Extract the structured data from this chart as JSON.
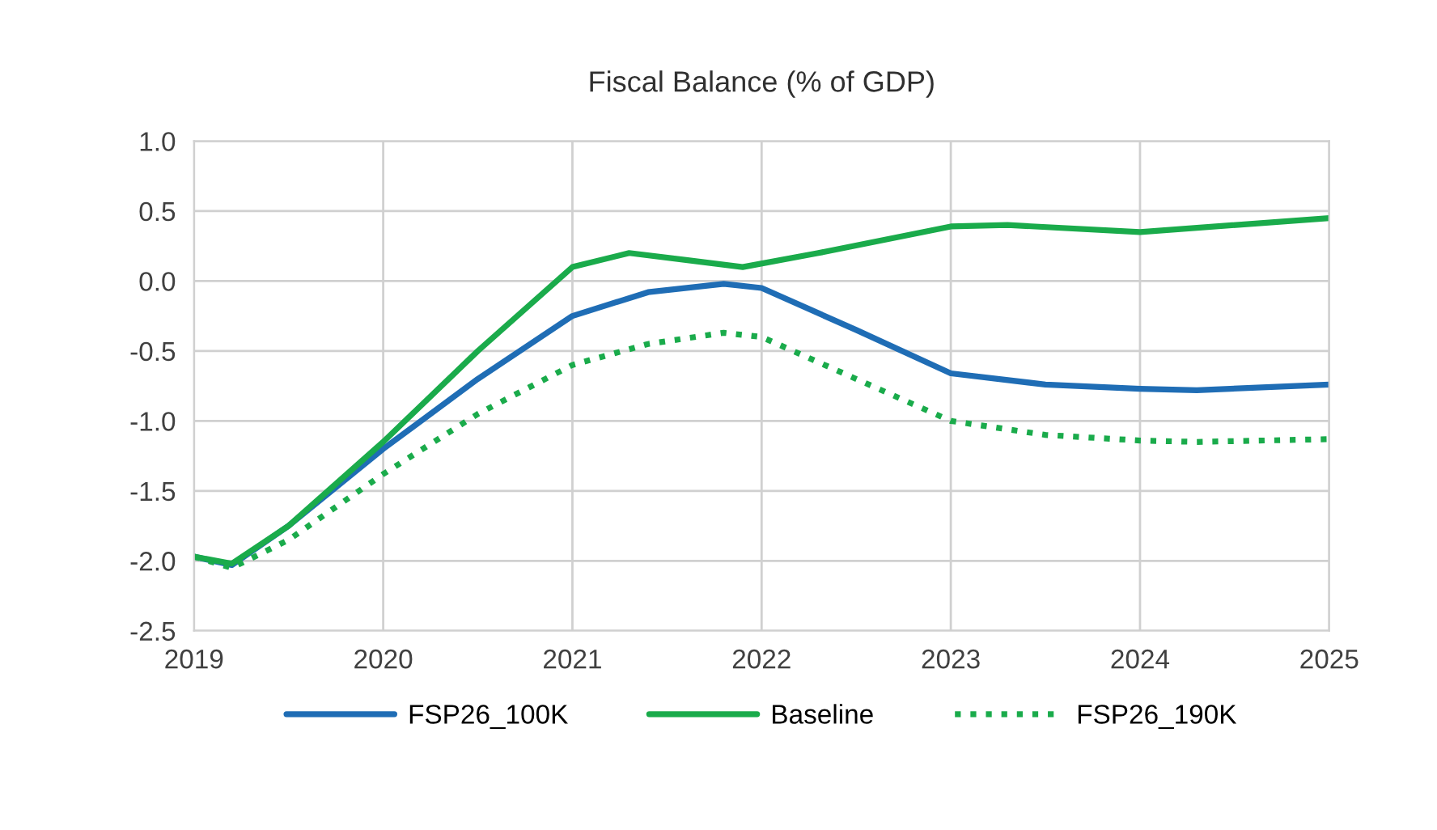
{
  "chart_data": {
    "type": "line",
    "title": "Fiscal Balance (% of GDP)",
    "xlim": [
      2019,
      2025
    ],
    "xticks": [
      2019,
      2020,
      2021,
      2022,
      2023,
      2024,
      2025
    ],
    "ylim": [
      -2.5,
      1.0
    ],
    "yticks": [
      {
        "value": -2.5,
        "label": "-2.5"
      },
      {
        "value": -2.0,
        "label": "-2.0"
      },
      {
        "value": -1.5,
        "label": "-1.5"
      },
      {
        "value": -1.0,
        "label": "-1.0"
      },
      {
        "value": -0.5,
        "label": "-0.5"
      },
      {
        "value": 0,
        "label": "0.0"
      },
      {
        "value": 0.5,
        "label": "0.5"
      },
      {
        "value": 1.0,
        "label": "1.0"
      }
    ],
    "grid": true,
    "legend": "bottom",
    "series": [
      {
        "name": "FSP26_100K",
        "color": "#1f6db5",
        "line_style": "solid",
        "x": [
          2019,
          2019.2,
          2019.5,
          2020,
          2020.5,
          2021,
          2021.4,
          2021.8,
          2022,
          2022.5,
          2023,
          2023.5,
          2024,
          2024.3,
          2025
        ],
        "values": [
          -1.97,
          -2.03,
          -1.75,
          -1.2,
          -0.7,
          -0.25,
          -0.08,
          -0.02,
          -0.05,
          -0.35,
          -0.66,
          -0.74,
          -0.77,
          -0.78,
          -0.74
        ]
      },
      {
        "name": "Baseline",
        "color": "#1aab4b",
        "line_style": "solid",
        "x": [
          2019,
          2019.2,
          2019.5,
          2020,
          2020.5,
          2021,
          2021.3,
          2021.6,
          2021.9,
          2022.3,
          2023,
          2023.3,
          2024,
          2025
        ],
        "values": [
          -1.97,
          -2.02,
          -1.75,
          -1.15,
          -0.5,
          0.1,
          0.2,
          0.15,
          0.1,
          0.2,
          0.39,
          0.4,
          0.35,
          0.45
        ]
      },
      {
        "name": "FSP26_190K",
        "color": "#1aab4b",
        "line_style": "dotted",
        "x": [
          2019,
          2019.2,
          2019.5,
          2020,
          2020.5,
          2021,
          2021.4,
          2021.8,
          2022,
          2022.5,
          2023,
          2023.5,
          2024,
          2024.3,
          2025
        ],
        "values": [
          -1.97,
          -2.05,
          -1.85,
          -1.38,
          -0.95,
          -0.6,
          -0.45,
          -0.37,
          -0.4,
          -0.7,
          -1.0,
          -1.1,
          -1.14,
          -1.15,
          -1.13
        ]
      }
    ]
  }
}
